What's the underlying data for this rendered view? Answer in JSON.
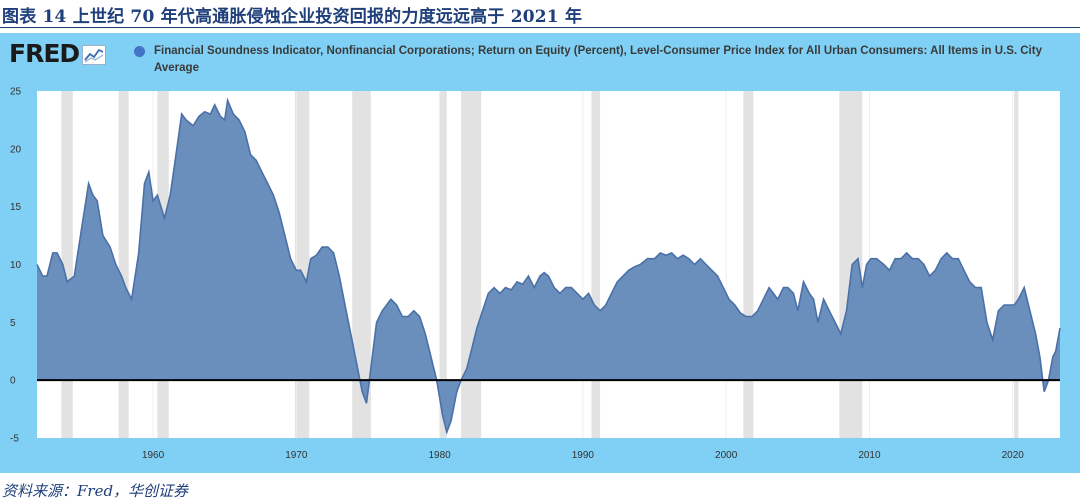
{
  "figure": {
    "title": "图表 14  上世纪 70 年代高通胀侵蚀企业投资回报的力度远远高于 2021 年",
    "source": "资料来源：Fred，华创证券"
  },
  "brand": {
    "logo_text": "FRED",
    "logo_icon": "chart-line-icon"
  },
  "colors": {
    "panel_bg": "#7fd0f4",
    "plot_bg": "#ffffff",
    "series_fill": "#6a8fbd",
    "series_line": "#4b70a8",
    "recession": "#e2e2e2",
    "title": "#1f3f7a"
  },
  "chart_data": {
    "type": "area",
    "title": "",
    "xlabel": "",
    "ylabel": "",
    "xlim": [
      1951.9,
      2023.3
    ],
    "ylim": [
      -5,
      25
    ],
    "x_ticks": [
      1960,
      1970,
      1980,
      1990,
      2000,
      2010,
      2020
    ],
    "y_ticks": [
      -5,
      0,
      5,
      10,
      15,
      20,
      25
    ],
    "zero_line": true,
    "legend": {
      "placement": "top",
      "label": "Financial Soundness Indicator, Nonfinancial Corporations; Return on Equity (Percent), Level-Consumer Price Index for All Urban Consumers: All Items in U.S. City Average"
    },
    "recessions": [
      [
        1953.6,
        1954.4
      ],
      [
        1957.6,
        1958.3
      ],
      [
        1960.3,
        1961.1
      ],
      [
        1969.9,
        1970.9
      ],
      [
        1973.9,
        1975.2
      ],
      [
        1980.0,
        1980.5
      ],
      [
        1981.5,
        1982.9
      ],
      [
        1990.6,
        1991.2
      ],
      [
        2001.2,
        2001.9
      ],
      [
        2007.9,
        2009.5
      ],
      [
        2020.1,
        2020.4
      ]
    ],
    "series": [
      {
        "name": "Financial Soundness Indicator, Nonfinancial Corporations; Return on Equity (Percent), Level-Consumer Price Index for All Urban Consumers: All Items in U.S. City Average",
        "x": [
          1951.9,
          1952.3,
          1952.6,
          1953.0,
          1953.3,
          1953.7,
          1954.0,
          1954.5,
          1955.0,
          1955.5,
          1955.8,
          1956.1,
          1956.5,
          1957.0,
          1957.4,
          1957.8,
          1958.1,
          1958.5,
          1959.0,
          1959.4,
          1959.7,
          1960.0,
          1960.3,
          1960.8,
          1961.2,
          1961.6,
          1962.0,
          1962.3,
          1962.8,
          1963.2,
          1963.6,
          1964.0,
          1964.3,
          1964.7,
          1965.0,
          1965.2,
          1965.6,
          1966.0,
          1966.4,
          1966.8,
          1967.2,
          1967.6,
          1968.0,
          1968.4,
          1968.8,
          1969.2,
          1969.6,
          1970.0,
          1970.3,
          1970.7,
          1971.0,
          1971.4,
          1971.8,
          1972.2,
          1972.6,
          1973.0,
          1973.4,
          1973.8,
          1974.2,
          1974.6,
          1974.9,
          1975.2,
          1975.6,
          1976.0,
          1976.3,
          1976.6,
          1977.0,
          1977.4,
          1977.8,
          1978.2,
          1978.6,
          1979.0,
          1979.4,
          1979.8,
          1980.2,
          1980.5,
          1980.8,
          1981.2,
          1981.5,
          1981.9,
          1982.3,
          1982.6,
          1983.0,
          1983.4,
          1983.8,
          1984.2,
          1984.6,
          1985.0,
          1985.4,
          1985.8,
          1986.2,
          1986.6,
          1987.0,
          1987.3,
          1987.6,
          1988.0,
          1988.4,
          1988.8,
          1989.2,
          1989.6,
          1990.0,
          1990.4,
          1990.8,
          1991.2,
          1991.6,
          1992.0,
          1992.4,
          1992.8,
          1993.2,
          1993.6,
          1994.0,
          1994.5,
          1995.0,
          1995.4,
          1995.8,
          1996.2,
          1996.6,
          1997.0,
          1997.4,
          1997.8,
          1998.2,
          1998.6,
          1999.0,
          1999.4,
          1999.8,
          2000.2,
          2000.6,
          2001.0,
          2001.4,
          2001.8,
          2002.2,
          2002.6,
          2003.0,
          2003.3,
          2003.6,
          2004.0,
          2004.3,
          2004.7,
          2005.0,
          2005.4,
          2005.8,
          2006.1,
          2006.4,
          2006.8,
          2007.2,
          2007.6,
          2008.0,
          2008.4,
          2008.8,
          2009.2,
          2009.5,
          2009.8,
          2010.1,
          2010.5,
          2011.0,
          2011.4,
          2011.8,
          2012.2,
          2012.6,
          2013.0,
          2013.4,
          2013.8,
          2014.2,
          2014.6,
          2015.0,
          2015.4,
          2015.8,
          2016.2,
          2016.6,
          2017.0,
          2017.4,
          2017.8,
          2018.2,
          2018.6,
          2019.0,
          2019.4,
          2019.8,
          2020.1,
          2020.4,
          2020.8,
          2021.2,
          2021.6,
          2021.9,
          2022.2,
          2022.5,
          2022.8,
          2023.0,
          2023.3
        ],
        "values": [
          10.0,
          9.0,
          9.0,
          11.0,
          11.0,
          10.0,
          8.5,
          9.0,
          13.0,
          17.0,
          16.0,
          15.5,
          12.5,
          11.5,
          10.0,
          9.0,
          8.0,
          7.0,
          11.0,
          17.0,
          18.0,
          15.5,
          16.0,
          14.0,
          16.0,
          19.5,
          23.0,
          22.5,
          22.0,
          22.8,
          23.2,
          23.0,
          23.8,
          22.8,
          22.5,
          24.2,
          23.0,
          22.5,
          21.5,
          19.5,
          19.0,
          18.0,
          17.0,
          16.0,
          14.5,
          12.5,
          10.5,
          9.5,
          9.5,
          8.5,
          10.5,
          10.8,
          11.5,
          11.5,
          11.0,
          9.0,
          6.5,
          4.0,
          1.5,
          -1.0,
          -2.0,
          1.0,
          5.0,
          6.0,
          6.5,
          7.0,
          6.5,
          5.5,
          5.5,
          6.0,
          5.5,
          4.0,
          2.0,
          0.0,
          -3.0,
          -4.5,
          -3.5,
          -1.0,
          0.0,
          1.0,
          3.0,
          4.5,
          6.0,
          7.5,
          8.0,
          7.5,
          8.0,
          7.8,
          8.5,
          8.3,
          9.0,
          8.0,
          9.0,
          9.3,
          9.0,
          8.0,
          7.5,
          8.0,
          8.0,
          7.5,
          7.0,
          7.5,
          6.5,
          6.0,
          6.5,
          7.5,
          8.5,
          9.0,
          9.5,
          9.8,
          10.0,
          10.5,
          10.5,
          11.0,
          10.8,
          11.0,
          10.5,
          10.8,
          10.5,
          10.0,
          10.5,
          10.0,
          9.5,
          9.0,
          8.0,
          7.0,
          6.5,
          5.8,
          5.5,
          5.5,
          6.0,
          7.0,
          8.0,
          7.5,
          7.0,
          8.0,
          8.0,
          7.5,
          6.0,
          8.5,
          7.5,
          7.0,
          5.0,
          7.0,
          6.0,
          5.0,
          4.0,
          6.0,
          10.0,
          10.5,
          8.0,
          10.0,
          10.5,
          10.5,
          10.0,
          9.5,
          10.5,
          10.5,
          11.0,
          10.5,
          10.5,
          10.0,
          9.0,
          9.5,
          10.5,
          11.0,
          10.5,
          10.5,
          9.5,
          8.5,
          8.0,
          8.0,
          5.0,
          3.5,
          6.0,
          6.5,
          6.5,
          6.5,
          7.0,
          8.0,
          6.0,
          4.0,
          2.0,
          -1.0,
          0.0,
          2.0,
          2.5,
          4.5
        ]
      }
    ]
  }
}
